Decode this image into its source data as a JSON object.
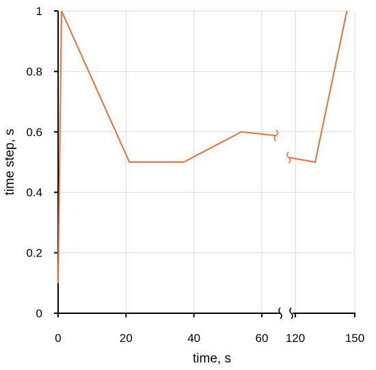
{
  "chart_data": {
    "type": "line",
    "xlabel": "time, s",
    "ylabel": "time step, s",
    "ylim": [
      0,
      1
    ],
    "y_ticks": [
      "0",
      "0.2",
      "0.4",
      "0.6",
      "0.8",
      "1"
    ],
    "x_ticks": [
      {
        "value": 0,
        "label": "0"
      },
      {
        "value": 20,
        "label": "20"
      },
      {
        "value": 40,
        "label": "40"
      },
      {
        "value": 60,
        "label": "60"
      },
      {
        "value": 120,
        "label": "120"
      },
      {
        "value": 150,
        "label": "150"
      }
    ],
    "x_axis_break": {
      "from": 65,
      "to": 115
    },
    "grid": true,
    "series": [
      {
        "color": "#f26b2f",
        "segments": [
          [
            {
              "x": 0,
              "y": 0.1
            },
            {
              "x": 1,
              "y": 1
            },
            {
              "x": 21,
              "y": 0.5
            },
            {
              "x": 37,
              "y": 0.5
            },
            {
              "x": 54,
              "y": 0.6
            },
            {
              "x": 64,
              "y": 0.588
            }
          ],
          [
            {
              "x": 117,
              "y": 0.515
            },
            {
              "x": 130,
              "y": 0.5
            },
            {
              "x": 146,
              "y": 1
            }
          ]
        ]
      }
    ]
  }
}
